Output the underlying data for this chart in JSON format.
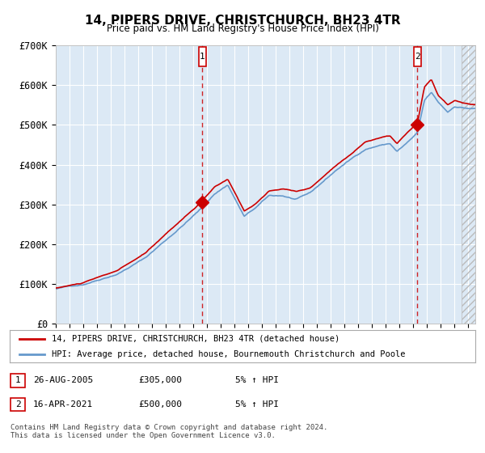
{
  "title": "14, PIPERS DRIVE, CHRISTCHURCH, BH23 4TR",
  "subtitle": "Price paid vs. HM Land Registry's House Price Index (HPI)",
  "plot_bg_color": "#dce9f5",
  "outer_bg_color": "#ffffff",
  "red_line_color": "#cc0000",
  "blue_line_color": "#6699cc",
  "sale1_date_num": 2005.65,
  "sale1_value": 305000,
  "sale2_date_num": 2021.29,
  "sale2_value": 500000,
  "xmin": 1995,
  "xmax": 2025.5,
  "ymin": 0,
  "ymax": 700000,
  "yticks": [
    0,
    100000,
    200000,
    300000,
    400000,
    500000,
    600000,
    700000
  ],
  "ytick_labels": [
    "£0",
    "£100K",
    "£200K",
    "£300K",
    "£400K",
    "£500K",
    "£600K",
    "£700K"
  ],
  "legend_line1": "14, PIPERS DRIVE, CHRISTCHURCH, BH23 4TR (detached house)",
  "legend_line2": "HPI: Average price, detached house, Bournemouth Christchurch and Poole",
  "table_row1": [
    "1",
    "26-AUG-2005",
    "£305,000",
    "5% ↑ HPI"
  ],
  "table_row2": [
    "2",
    "16-APR-2021",
    "£500,000",
    "5% ↑ HPI"
  ],
  "footnote": "Contains HM Land Registry data © Crown copyright and database right 2024.\nThis data is licensed under the Open Government Licence v3.0.",
  "hpi_waypoints": [
    [
      1995.0,
      88000
    ],
    [
      1997.0,
      100000
    ],
    [
      1999.5,
      130000
    ],
    [
      2001.5,
      170000
    ],
    [
      2003.5,
      230000
    ],
    [
      2005.6,
      295000
    ],
    [
      2006.5,
      330000
    ],
    [
      2007.5,
      355000
    ],
    [
      2008.7,
      275000
    ],
    [
      2009.5,
      295000
    ],
    [
      2010.5,
      325000
    ],
    [
      2011.5,
      325000
    ],
    [
      2012.5,
      315000
    ],
    [
      2013.5,
      330000
    ],
    [
      2014.5,
      360000
    ],
    [
      2015.5,
      390000
    ],
    [
      2016.5,
      415000
    ],
    [
      2017.5,
      440000
    ],
    [
      2018.5,
      450000
    ],
    [
      2019.3,
      455000
    ],
    [
      2019.8,
      435000
    ],
    [
      2020.5,
      455000
    ],
    [
      2021.3,
      480000
    ],
    [
      2021.8,
      560000
    ],
    [
      2022.3,
      580000
    ],
    [
      2022.8,
      555000
    ],
    [
      2023.5,
      530000
    ],
    [
      2024.0,
      545000
    ],
    [
      2025.2,
      540000
    ]
  ],
  "red_waypoints": [
    [
      1995.0,
      90000
    ],
    [
      1997.0,
      103000
    ],
    [
      1999.5,
      133000
    ],
    [
      2001.5,
      175000
    ],
    [
      2003.5,
      240000
    ],
    [
      2005.6,
      305000
    ],
    [
      2006.5,
      340000
    ],
    [
      2007.5,
      360000
    ],
    [
      2008.7,
      280000
    ],
    [
      2009.5,
      298000
    ],
    [
      2010.5,
      330000
    ],
    [
      2011.5,
      335000
    ],
    [
      2012.5,
      330000
    ],
    [
      2013.5,
      338000
    ],
    [
      2014.5,
      368000
    ],
    [
      2015.5,
      400000
    ],
    [
      2016.5,
      425000
    ],
    [
      2017.5,
      455000
    ],
    [
      2018.5,
      465000
    ],
    [
      2019.3,
      470000
    ],
    [
      2019.8,
      450000
    ],
    [
      2020.5,
      475000
    ],
    [
      2021.3,
      500000
    ],
    [
      2021.8,
      590000
    ],
    [
      2022.3,
      610000
    ],
    [
      2022.8,
      570000
    ],
    [
      2023.5,
      545000
    ],
    [
      2024.0,
      555000
    ],
    [
      2025.2,
      545000
    ]
  ]
}
